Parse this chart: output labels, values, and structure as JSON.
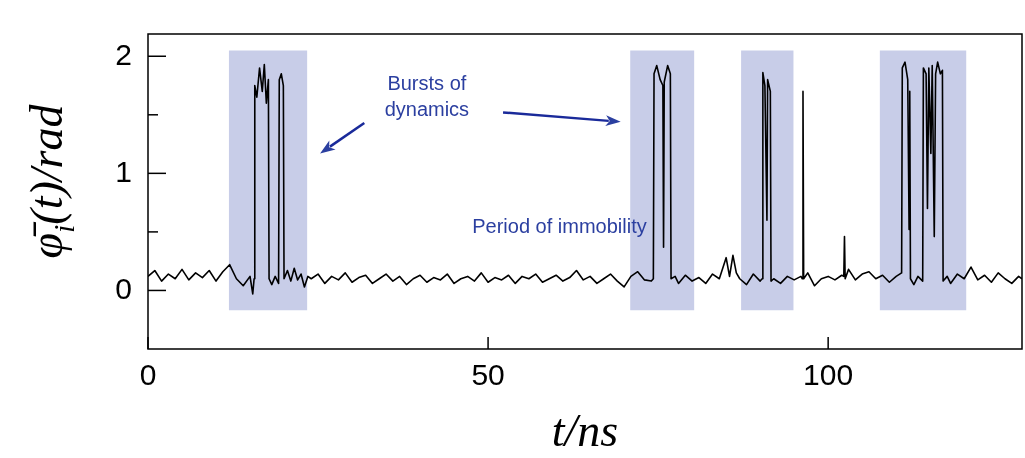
{
  "chart_data": {
    "type": "line",
    "xlabel": "t/ns",
    "ylabel": "φ̄$_{i}$(t)/rad",
    "xlim": [
      0,
      128.5
    ],
    "ylim": [
      -0.5,
      2.19
    ],
    "xticks": [
      0,
      50,
      100
    ],
    "yticks": [
      0,
      {
        "value": 0.5,
        "label": null
      },
      1,
      {
        "value": 1.5,
        "label": null
      },
      2
    ],
    "grid": false,
    "legend": false,
    "marker": "none",
    "line_style": "solid",
    "annotations": [
      "Bursts of dynamics",
      "Period of immobility"
    ],
    "bands": [
      {
        "axis": "x",
        "from": 11.9,
        "to": 23.4,
        "color": "#c8cde8"
      },
      {
        "axis": "x",
        "from": 70.9,
        "to": 80.3,
        "color": "#c8cde8"
      },
      {
        "axis": "x",
        "from": 87.2,
        "to": 94.9,
        "color": "#c8cde8"
      },
      {
        "axis": "x",
        "from": 107.6,
        "to": 120.3,
        "color": "#c8cde8"
      }
    ],
    "series": [
      {
        "color": "#000000",
        "x": [
          0,
          1,
          2,
          3,
          4,
          5,
          6,
          7,
          8,
          9,
          10,
          11,
          12,
          13,
          14,
          15,
          15.4,
          15.6,
          15.7,
          16,
          16.4,
          16.8,
          17.1,
          17.4,
          17.7,
          17.8,
          18.2,
          18.7,
          19.2,
          19.3,
          19.6,
          19.9,
          20,
          20.5,
          21,
          21.5,
          22,
          22.5,
          23,
          23.5,
          24,
          25,
          26,
          27,
          28,
          29,
          30,
          31,
          32,
          33,
          34,
          35,
          36,
          37,
          38,
          39,
          40,
          41,
          42,
          43,
          44,
          45,
          46,
          47,
          48,
          49,
          50,
          51,
          52,
          53,
          54,
          55,
          56,
          57,
          58,
          59,
          60,
          61,
          62,
          63,
          64,
          65,
          66,
          67,
          68,
          69,
          70,
          71,
          72,
          73,
          74,
          74.3,
          74.4,
          74.8,
          75.3,
          75.7,
          75.8,
          75.9,
          76.4,
          76.8,
          76.9,
          77.5,
          78,
          79,
          80,
          81,
          82,
          83,
          84,
          85,
          85.5,
          86,
          86.5,
          87,
          88,
          89,
          90,
          90.3,
          90.4,
          90.7,
          91,
          91.1,
          91.5,
          91.6,
          92,
          93,
          94,
          95,
          96,
          96.2,
          96.3,
          96.4,
          97,
          98,
          99,
          100,
          101,
          102,
          102.3,
          102.4,
          102.5,
          103,
          104,
          105,
          106,
          107,
          108,
          109,
          110,
          110.8,
          110.9,
          111.3,
          111.7,
          111.9,
          112,
          112.1,
          112.6,
          113.2,
          113.9,
          114,
          114.4,
          114.6,
          114.8,
          115.1,
          115.3,
          115.6,
          115.8,
          116.1,
          116.5,
          116.8,
          116.9,
          117.5,
          118,
          119,
          120,
          121,
          122,
          123,
          124,
          125,
          126,
          127,
          128,
          128.5
        ],
        "values": [
          0.12,
          0.17,
          0.08,
          0.14,
          0.1,
          0.18,
          0.09,
          0.15,
          0.11,
          0.17,
          0.08,
          0.16,
          0.22,
          0.1,
          0.04,
          0.12,
          -0.03,
          0.1,
          1.75,
          1.65,
          1.9,
          1.7,
          1.93,
          1.6,
          1.8,
          0.1,
          0.05,
          0.12,
          0.06,
          1.8,
          1.85,
          1.75,
          0.1,
          0.17,
          0.08,
          0.19,
          0.09,
          0.14,
          0.03,
          0.12,
          0.1,
          0.14,
          0.06,
          0.12,
          0.09,
          0.15,
          0.07,
          0.11,
          0.13,
          0.06,
          0.1,
          0.14,
          0.08,
          0.12,
          0.05,
          0.1,
          0.13,
          0.07,
          0.11,
          0.09,
          0.14,
          0.06,
          0.1,
          0.12,
          0.08,
          0.15,
          0.07,
          0.11,
          0.09,
          0.13,
          0.06,
          0.12,
          0.1,
          0.14,
          0.07,
          0.1,
          0.13,
          0.08,
          0.11,
          0.17,
          0.09,
          0.12,
          0.06,
          0.1,
          0.14,
          0.08,
          0.03,
          0.12,
          0.16,
          0.09,
          0.08,
          0.1,
          1.85,
          1.92,
          1.8,
          1.75,
          0.37,
          1.78,
          1.92,
          1.85,
          0.1,
          0.12,
          0.06,
          0.13,
          0.08,
          0.11,
          0.06,
          0.14,
          0.1,
          0.28,
          0.12,
          0.3,
          0.15,
          0.1,
          0.05,
          0.14,
          0.08,
          0.1,
          1.86,
          1.75,
          0.6,
          1.8,
          1.7,
          0.08,
          0.1,
          0.06,
          0.12,
          0.09,
          0.12,
          0.1,
          1.7,
          0.1,
          0.15,
          0.04,
          0.1,
          0.12,
          0.09,
          0.13,
          0.12,
          0.46,
          0.1,
          0.18,
          0.09,
          0.14,
          0.16,
          0.1,
          0.13,
          0.07,
          0.12,
          0.15,
          1.9,
          1.95,
          1.8,
          0.52,
          1.7,
          0.1,
          0.05,
          0.12,
          0.08,
          1.9,
          1.85,
          0.7,
          1.9,
          1.17,
          1.92,
          0.46,
          1.85,
          1.95,
          1.85,
          1.88,
          0.08,
          0.12,
          0.06,
          0.14,
          0.1,
          0.2,
          0.09,
          0.13,
          0.07,
          0.15,
          0.1,
          0.06,
          0.12,
          0.1
        ]
      }
    ]
  }
}
